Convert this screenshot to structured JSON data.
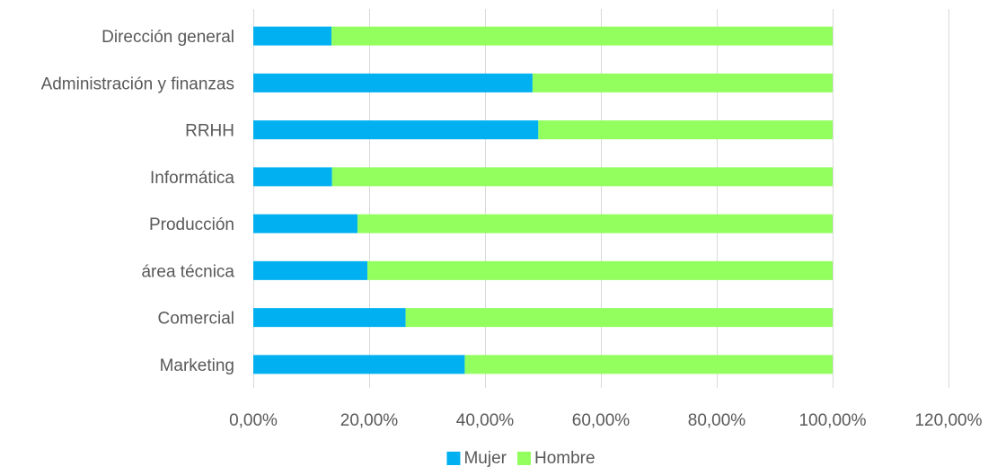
{
  "chart_data": {
    "type": "bar",
    "orientation": "horizontal",
    "stacked": true,
    "categories": [
      "Dirección general",
      "Administración y finanzas",
      "RRHH",
      "Informática",
      "Producción",
      "área técnica",
      "Comercial",
      "Marketing"
    ],
    "series": [
      {
        "name": "Mujer",
        "color": "#00B0F0",
        "values": [
          0.135,
          0.482,
          0.492,
          0.136,
          0.18,
          0.197,
          0.263,
          0.365
        ]
      },
      {
        "name": "Hombre",
        "color": "#92FF5E",
        "values": [
          0.865,
          0.518,
          0.508,
          0.864,
          0.82,
          0.803,
          0.737,
          0.635
        ]
      }
    ],
    "xlim": [
      0,
      1.2
    ],
    "xticks": [
      0,
      0.2,
      0.4,
      0.6,
      0.8,
      1.0,
      1.2
    ],
    "xtick_labels": [
      "0,00%",
      "20,00%",
      "40,00%",
      "60,00%",
      "80,00%",
      "100,00%",
      "120,00%"
    ],
    "grid": true,
    "legend_position": "bottom",
    "title": "",
    "xlabel": "",
    "ylabel": ""
  }
}
